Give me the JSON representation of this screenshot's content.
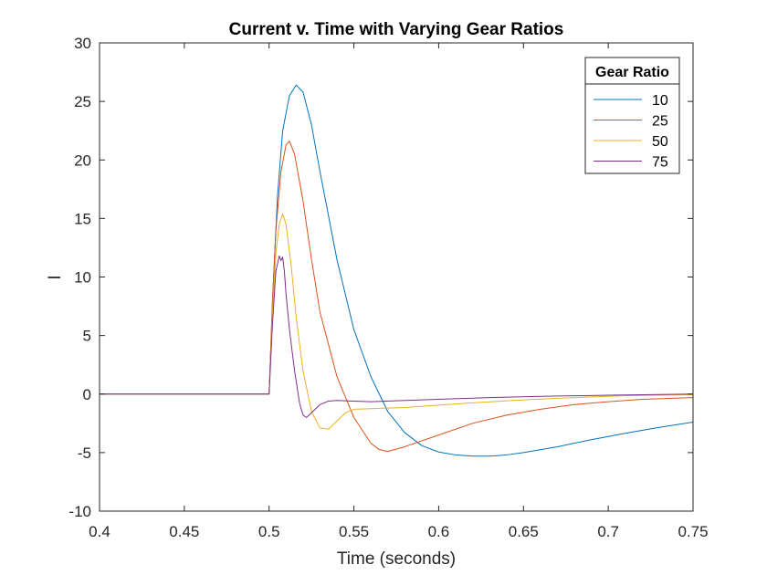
{
  "chart_data": {
    "type": "line",
    "title": "Current v. Time with Varying Gear Ratios",
    "xlabel": "Time (seconds)",
    "ylabel": "I",
    "xlim": [
      0.4,
      0.75
    ],
    "ylim": [
      -10,
      30
    ],
    "xticks": [
      0.4,
      0.45,
      0.5,
      0.55,
      0.6,
      0.65,
      0.7,
      0.75
    ],
    "xtick_labels": [
      "0.4",
      "0.45",
      "0.5",
      "0.55",
      "0.6",
      "0.65",
      "0.7",
      "0.75"
    ],
    "yticks": [
      -10,
      -5,
      0,
      5,
      10,
      15,
      20,
      25,
      30
    ],
    "ytick_labels": [
      "-10",
      "-5",
      "0",
      "5",
      "10",
      "15",
      "20",
      "25",
      "30"
    ],
    "grid": false,
    "legend": {
      "title": "Gear Ratio",
      "position": "top-right"
    },
    "series": [
      {
        "name": "10",
        "color": "#0072BD",
        "x": [
          0.4,
          0.5,
          0.502,
          0.505,
          0.508,
          0.512,
          0.516,
          0.52,
          0.525,
          0.53,
          0.54,
          0.55,
          0.56,
          0.57,
          0.58,
          0.59,
          0.6,
          0.61,
          0.62,
          0.63,
          0.64,
          0.65,
          0.67,
          0.69,
          0.71,
          0.73,
          0.75
        ],
        "y": [
          0,
          0,
          8,
          17,
          22.5,
          25.5,
          26.4,
          25.8,
          23,
          19,
          11.5,
          5.5,
          1.5,
          -1.5,
          -3.3,
          -4.4,
          -4.95,
          -5.2,
          -5.3,
          -5.3,
          -5.2,
          -5.0,
          -4.5,
          -3.9,
          -3.35,
          -2.85,
          -2.4
        ]
      },
      {
        "name": "25",
        "color": "#D95319",
        "x": [
          0.4,
          0.5,
          0.502,
          0.504,
          0.507,
          0.51,
          0.512,
          0.515,
          0.52,
          0.525,
          0.53,
          0.54,
          0.55,
          0.56,
          0.565,
          0.57,
          0.58,
          0.6,
          0.62,
          0.64,
          0.66,
          0.68,
          0.7,
          0.72,
          0.75
        ],
        "y": [
          0,
          0,
          8,
          14,
          19,
          21.3,
          21.6,
          20.5,
          16.5,
          11.5,
          7,
          1.5,
          -2,
          -4.2,
          -4.75,
          -4.9,
          -4.5,
          -3.5,
          -2.5,
          -1.8,
          -1.3,
          -0.9,
          -0.65,
          -0.45,
          -0.3
        ]
      },
      {
        "name": "50",
        "color": "#EDB120",
        "x": [
          0.4,
          0.5,
          0.502,
          0.504,
          0.506,
          0.508,
          0.51,
          0.513,
          0.516,
          0.52,
          0.525,
          0.53,
          0.535,
          0.54,
          0.545,
          0.55,
          0.56,
          0.57,
          0.58,
          0.6,
          0.62,
          0.65,
          0.68,
          0.71,
          0.75
        ],
        "y": [
          0,
          0,
          7,
          12,
          14.5,
          15.4,
          14.5,
          11,
          6.5,
          2,
          -1.5,
          -2.9,
          -3.0,
          -2.3,
          -1.6,
          -1.3,
          -1.25,
          -1.2,
          -1.15,
          -0.95,
          -0.75,
          -0.5,
          -0.3,
          -0.15,
          -0.05
        ]
      },
      {
        "name": "75",
        "color": "#7E2F8E",
        "x": [
          0.4,
          0.5,
          0.502,
          0.504,
          0.506,
          0.507,
          0.508,
          0.509,
          0.51,
          0.512,
          0.515,
          0.518,
          0.52,
          0.522,
          0.525,
          0.53,
          0.535,
          0.54,
          0.55,
          0.56,
          0.58,
          0.6,
          0.63,
          0.66,
          0.7,
          0.75
        ],
        "y": [
          0,
          0,
          6,
          10.5,
          11.8,
          11.4,
          11.7,
          10.5,
          8.5,
          5.5,
          2,
          -0.8,
          -1.8,
          -2.0,
          -1.6,
          -0.9,
          -0.6,
          -0.55,
          -0.6,
          -0.65,
          -0.55,
          -0.45,
          -0.3,
          -0.2,
          -0.1,
          0.0
        ]
      }
    ]
  }
}
